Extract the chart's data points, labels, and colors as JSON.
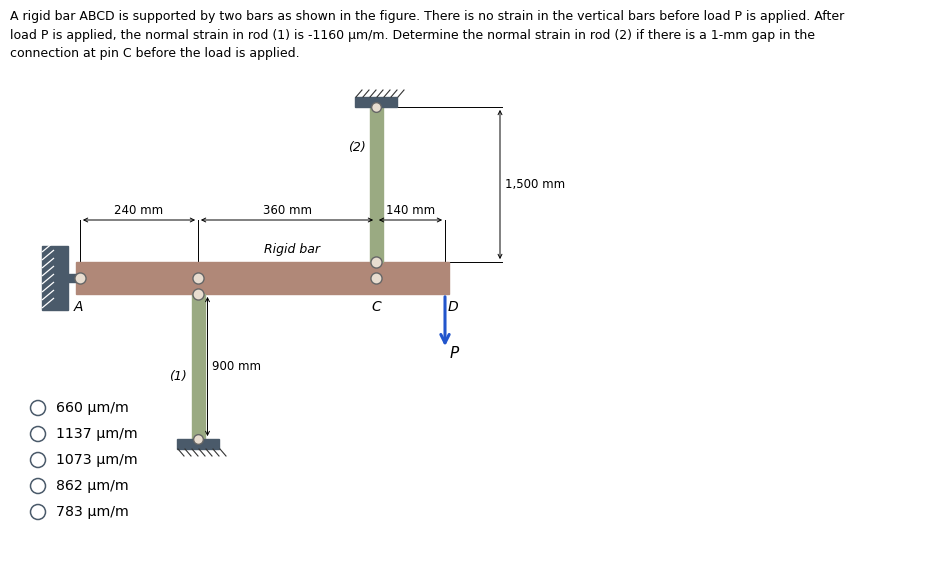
{
  "title_text": "A rigid bar ABCD is supported by two bars as shown in the figure. There is no strain in the vertical bars before load P is applied. After\nload P is applied, the normal strain in rod (1) is -1160 μm/m. Determine the normal strain in rod (2) if there is a 1-mm gap in the\nconnection at pin C before the load is applied.",
  "options": [
    "660 μm/m",
    "1137 μm/m",
    "1073 μm/m",
    "862 μm/m",
    "783 μm/m"
  ],
  "fig_bg": "#ffffff",
  "bar_color": "#b08878",
  "rod_color": "#9aaa82",
  "wall_color": "#4a5a6a",
  "support_color": "#4a5a6a",
  "text_color": "#2c3e50",
  "arrow_color": "#2255cc",
  "option_circle_color": "#4a5a6a"
}
